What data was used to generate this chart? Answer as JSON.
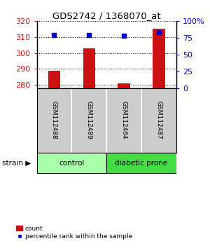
{
  "title": "GDS2742 / 1368070_at",
  "samples": [
    "GSM112488",
    "GSM112489",
    "GSM112464",
    "GSM112487"
  ],
  "count_values": [
    289.0,
    303.0,
    281.0,
    315.0
  ],
  "percentile_values": [
    79,
    79,
    78,
    83
  ],
  "ylim_left": [
    278,
    320
  ],
  "ylim_right": [
    0,
    100
  ],
  "yticks_left": [
    280,
    290,
    300,
    310,
    320
  ],
  "yticks_right": [
    0,
    25,
    50,
    75,
    100
  ],
  "ytick_labels_right": [
    "0",
    "25",
    "50",
    "75",
    "100%"
  ],
  "bar_color": "#cc1111",
  "dot_color": "#0000cc",
  "groups": [
    {
      "label": "control",
      "indices": [
        0,
        1
      ],
      "color": "#aaffaa"
    },
    {
      "label": "diabetic prone",
      "indices": [
        2,
        3
      ],
      "color": "#44dd44"
    }
  ],
  "strain_label": "strain",
  "legend_count_label": "count",
  "legend_percentile_label": "percentile rank within the sample",
  "background_color": "#ffffff",
  "sample_label_bg": "#cccccc",
  "bar_width": 0.35
}
